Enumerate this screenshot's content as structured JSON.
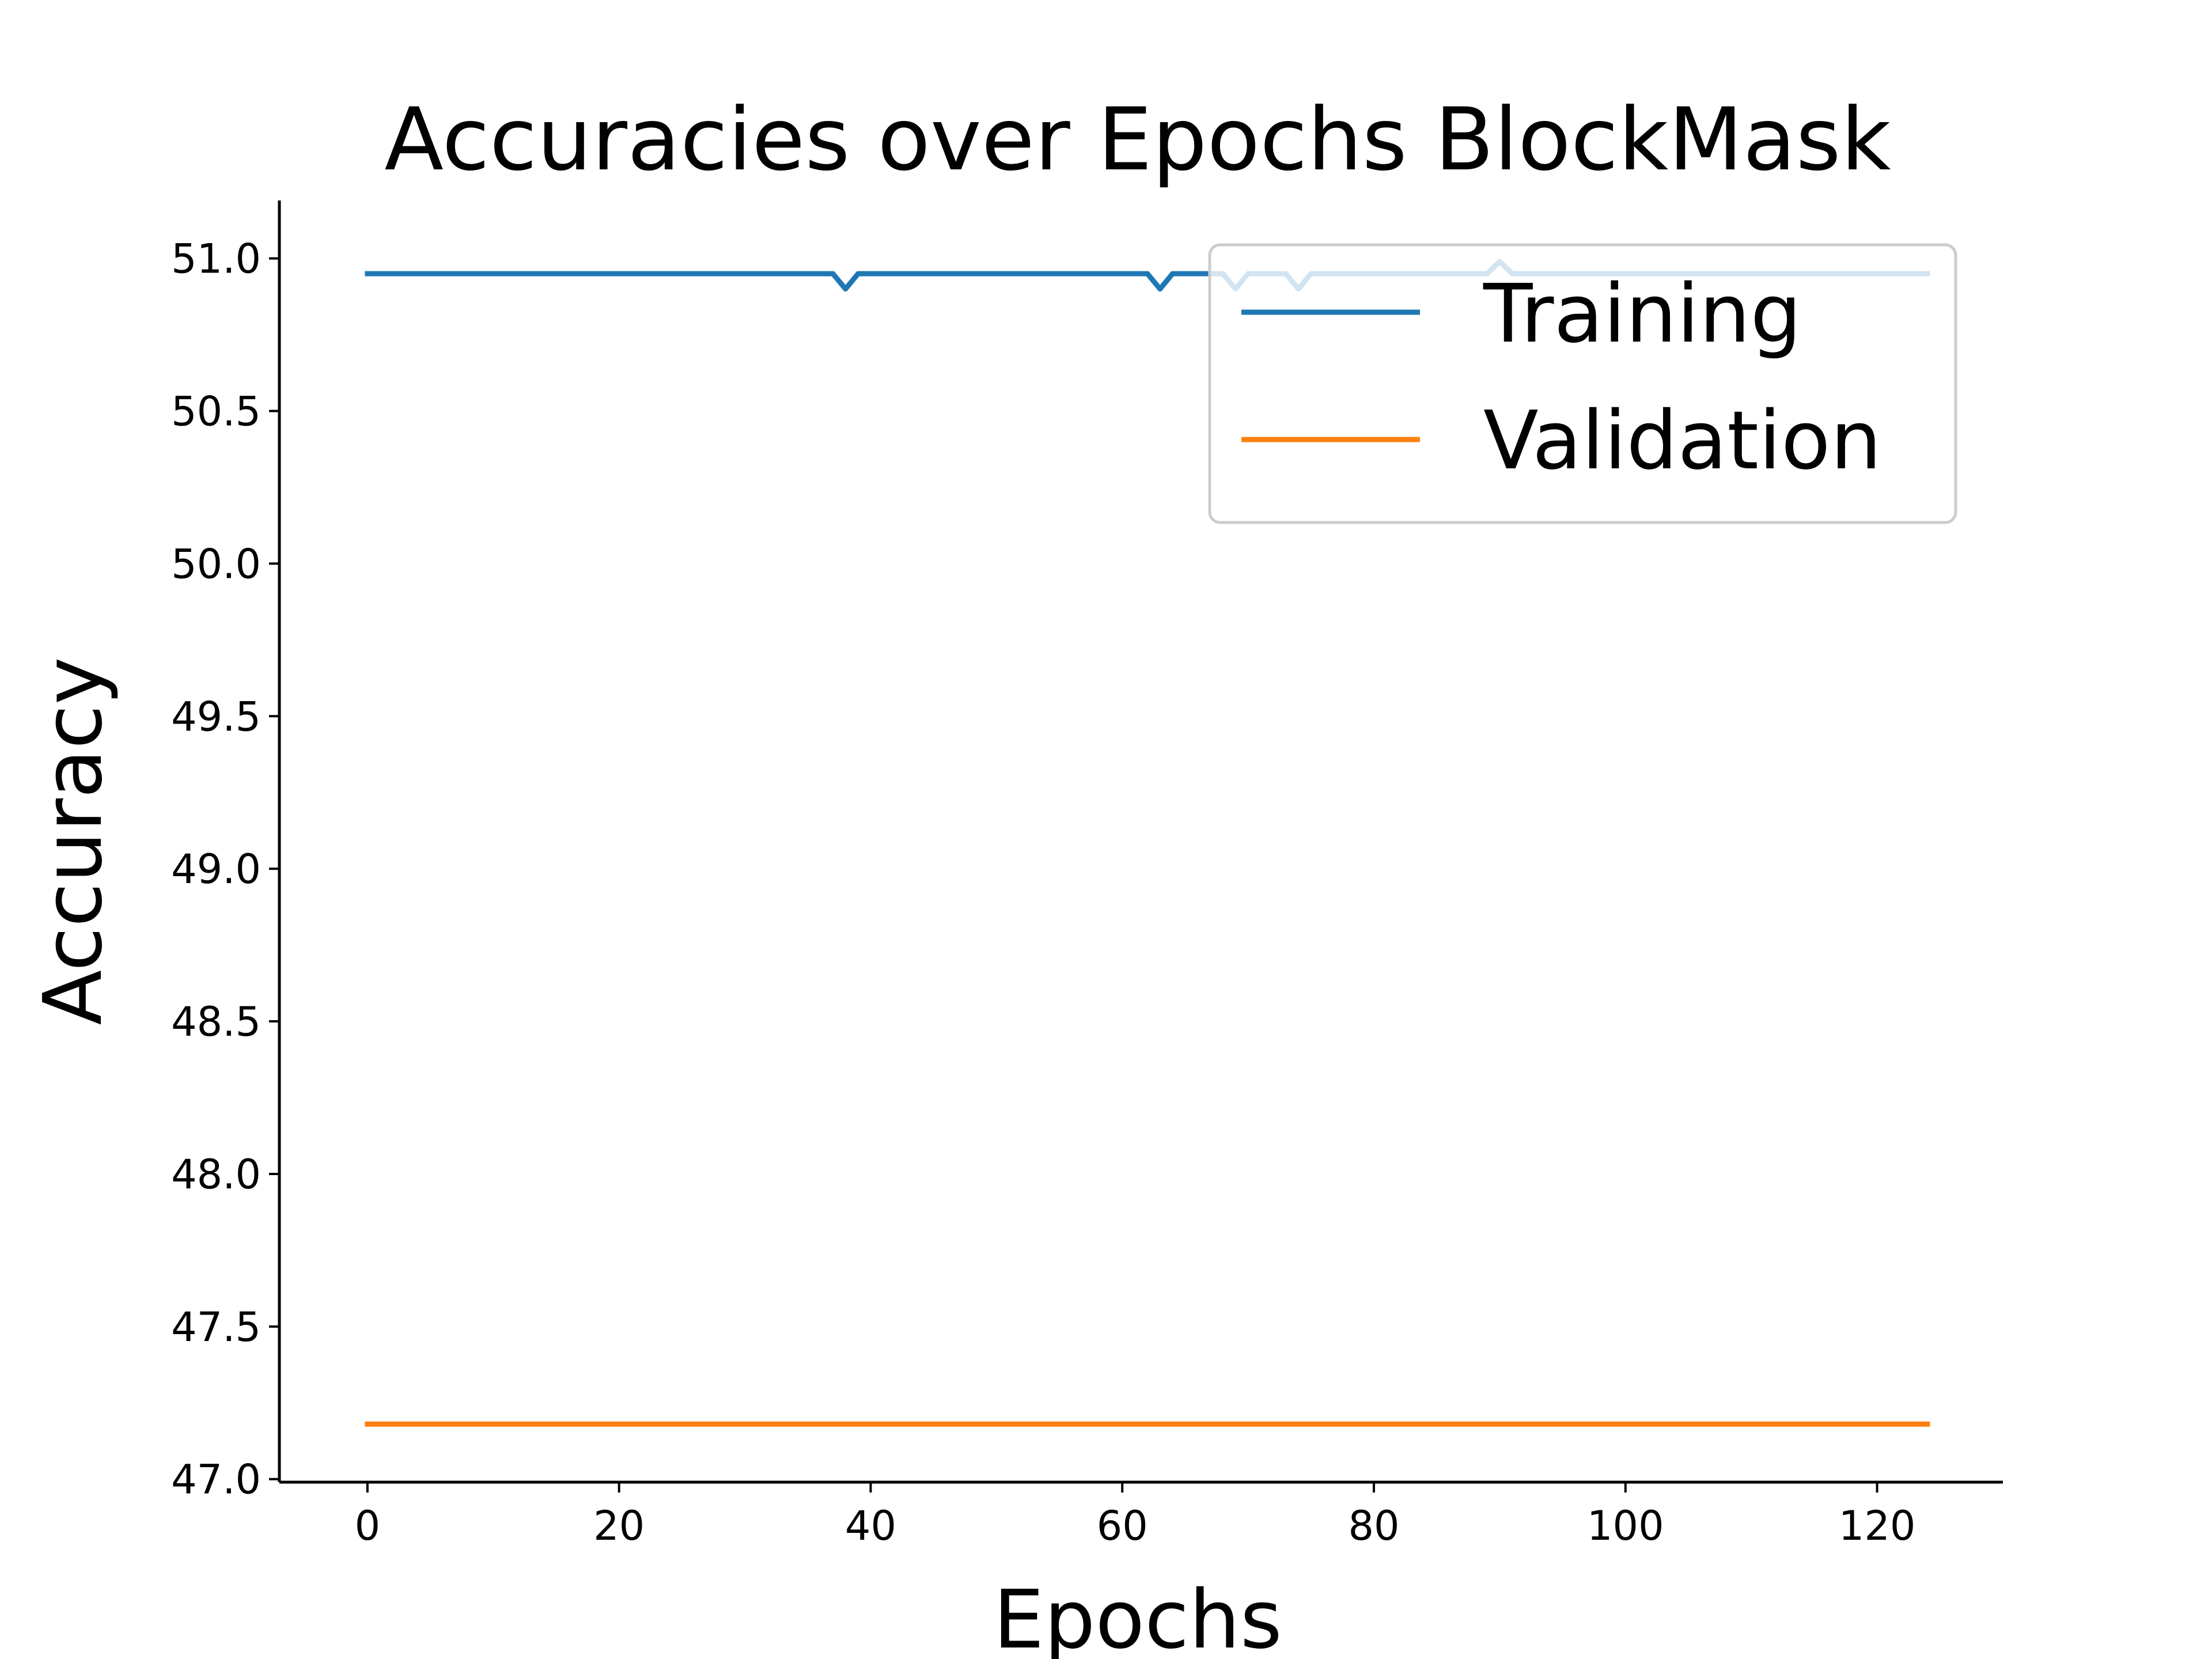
{
  "chart_data": {
    "type": "line",
    "title": "Accuracies over Epochs BlockMask",
    "xlabel": "Epochs",
    "ylabel": "Accuracy",
    "xlim": [
      -7,
      130
    ],
    "ylim": [
      46.99,
      51.19
    ],
    "xticks": [
      0,
      20,
      40,
      60,
      80,
      100,
      120
    ],
    "xtick_labels": [
      "0",
      "20",
      "40",
      "60",
      "80",
      "100",
      "120"
    ],
    "yticks": [
      47.0,
      47.5,
      48.0,
      48.5,
      49.0,
      49.5,
      50.0,
      50.5,
      51.0
    ],
    "ytick_labels": [
      "47.0",
      "47.5",
      "48.0",
      "48.5",
      "49.0",
      "49.5",
      "50.0",
      "50.5",
      "51.0"
    ],
    "grid": false,
    "legend_position": "top-right",
    "series": [
      {
        "name": "Training",
        "color": "#1f77b4",
        "x": [
          0,
          37,
          38,
          39,
          62,
          63,
          64,
          68,
          69,
          70,
          73,
          74,
          75,
          89,
          90,
          91,
          124
        ],
        "y": [
          50.95,
          50.95,
          50.9,
          50.95,
          50.95,
          50.9,
          50.95,
          50.95,
          50.9,
          50.95,
          50.95,
          50.9,
          50.95,
          50.95,
          50.99,
          50.95,
          50.95
        ]
      },
      {
        "name": "Validation",
        "color": "#ff7f0e",
        "x": [
          0,
          124
        ],
        "y": [
          47.18,
          47.18
        ]
      }
    ]
  }
}
